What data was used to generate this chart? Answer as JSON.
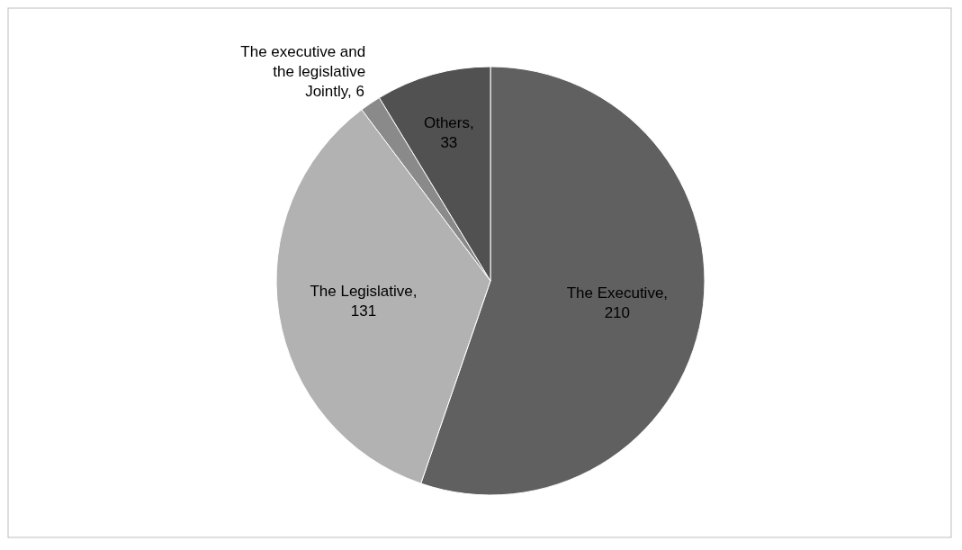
{
  "chart_data": {
    "type": "pie",
    "categories": [
      "The Executive",
      "The Legislative",
      "The executive and the legislative Jointly",
      "Others"
    ],
    "values": [
      210,
      131,
      6,
      33
    ],
    "colors": [
      "#606060",
      "#b2b2b2",
      "#8a8a8a",
      "#515151"
    ],
    "value_labels": [
      ", 210",
      ", 131",
      ", 6",
      ", 33"
    ]
  }
}
